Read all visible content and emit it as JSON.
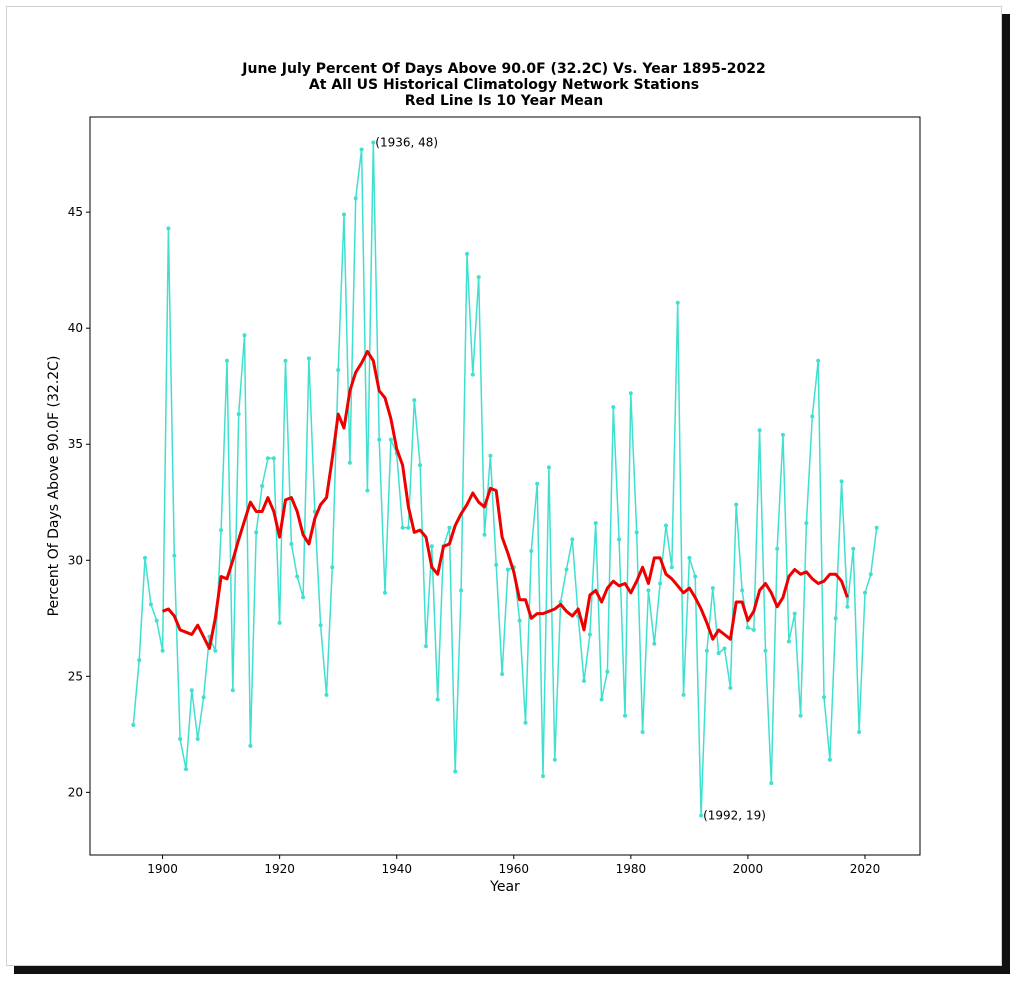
{
  "chart_data": {
    "type": "line",
    "title_lines": [
      "June July Percent Of Days Above 90.0F (32.2C) Vs. Year 1895-2022",
      "At All US Historical Climatology Network Stations",
      "Red Line Is 10 Year Mean"
    ],
    "xlabel": "Year",
    "ylabel": "Percent Of Days Above 90.0F (32.2C)",
    "xlim": [
      1887.6,
      2029.4
    ],
    "ylim": [
      17.3,
      49.1
    ],
    "xticks": [
      1900,
      1920,
      1940,
      1960,
      1980,
      2000,
      2020
    ],
    "yticks": [
      20,
      25,
      30,
      35,
      40,
      45
    ],
    "grid": false,
    "series": [
      {
        "color": "#40e0d0",
        "x": [
          1895,
          1896,
          1897,
          1898,
          1899,
          1900,
          1901,
          1902,
          1903,
          1904,
          1905,
          1906,
          1907,
          1908,
          1909,
          1910,
          1911,
          1912,
          1913,
          1914,
          1915,
          1916,
          1917,
          1918,
          1919,
          1920,
          1921,
          1922,
          1923,
          1924,
          1925,
          1926,
          1927,
          1928,
          1929,
          1930,
          1931,
          1932,
          1933,
          1934,
          1935,
          1936,
          1937,
          1938,
          1939,
          1940,
          1941,
          1942,
          1943,
          1944,
          1945,
          1946,
          1947,
          1948,
          1949,
          1950,
          1951,
          1952,
          1953,
          1954,
          1955,
          1956,
          1957,
          1958,
          1959,
          1960,
          1961,
          1962,
          1963,
          1964,
          1965,
          1966,
          1967,
          1968,
          1969,
          1970,
          1971,
          1972,
          1973,
          1974,
          1975,
          1976,
          1977,
          1978,
          1979,
          1980,
          1981,
          1982,
          1983,
          1984,
          1985,
          1986,
          1987,
          1988,
          1989,
          1990,
          1991,
          1992,
          1993,
          1994,
          1995,
          1996,
          1997,
          1998,
          1999,
          2000,
          2001,
          2002,
          2003,
          2004,
          2005,
          2006,
          2007,
          2008,
          2009,
          2010,
          2011,
          2012,
          2013,
          2014,
          2015,
          2016,
          2017,
          2018,
          2019,
          2020,
          2021,
          2022
        ],
        "values": [
          22.9,
          25.7,
          30.1,
          28.1,
          27.4,
          26.1,
          44.3,
          30.2,
          22.3,
          21.0,
          24.4,
          22.3,
          24.1,
          26.7,
          26.1,
          31.3,
          38.6,
          24.4,
          36.3,
          39.7,
          22.0,
          31.2,
          33.2,
          34.4,
          34.4,
          27.3,
          38.6,
          30.7,
          29.3,
          28.4,
          38.7,
          32.1,
          27.2,
          24.2,
          29.7,
          38.2,
          44.9,
          34.2,
          45.6,
          47.7,
          33.0,
          48.0,
          35.2,
          28.6,
          35.2,
          34.6,
          31.4,
          31.4,
          36.9,
          34.1,
          26.3,
          30.6,
          24.0,
          30.6,
          31.4,
          20.9,
          28.7,
          43.2,
          38.0,
          42.2,
          31.1,
          34.5,
          29.8,
          25.1,
          29.6,
          29.7,
          27.4,
          23.0,
          30.4,
          33.3,
          20.7,
          34.0,
          21.4,
          28.2,
          29.6,
          30.9,
          27.6,
          24.8,
          26.8,
          31.6,
          24.0,
          25.2,
          36.6,
          30.9,
          23.3,
          37.2,
          31.2,
          22.6,
          28.7,
          26.4,
          29.0,
          31.5,
          29.7,
          41.1,
          24.2,
          30.1,
          29.3,
          19.0,
          26.1,
          28.8,
          26.0,
          26.2,
          24.5,
          32.4,
          28.7,
          27.1,
          27.0,
          35.6,
          26.1,
          20.4,
          30.5,
          35.4,
          26.5,
          27.7,
          23.3,
          31.6,
          36.2,
          38.6,
          24.1,
          21.4,
          27.5,
          33.4,
          28.0,
          30.5,
          22.6,
          28.6,
          29.4,
          31.4
        ]
      },
      {
        "color": "#ee0000",
        "x": [
          1900,
          1901,
          1902,
          1903,
          1904,
          1905,
          1906,
          1907,
          1908,
          1909,
          1910,
          1911,
          1912,
          1913,
          1914,
          1915,
          1916,
          1917,
          1918,
          1919,
          1920,
          1921,
          1922,
          1923,
          1924,
          1925,
          1926,
          1927,
          1928,
          1929,
          1930,
          1931,
          1932,
          1933,
          1934,
          1935,
          1936,
          1937,
          1938,
          1939,
          1940,
          1941,
          1942,
          1943,
          1944,
          1945,
          1946,
          1947,
          1948,
          1949,
          1950,
          1951,
          1952,
          1953,
          1954,
          1955,
          1956,
          1957,
          1958,
          1959,
          1960,
          1961,
          1962,
          1963,
          1964,
          1965,
          1966,
          1967,
          1968,
          1969,
          1970,
          1971,
          1972,
          1973,
          1974,
          1975,
          1976,
          1977,
          1978,
          1979,
          1980,
          1981,
          1982,
          1983,
          1984,
          1985,
          1986,
          1987,
          1988,
          1989,
          1990,
          1991,
          1992,
          1993,
          1994,
          1995,
          1996,
          1997,
          1998,
          1999,
          2000,
          2001,
          2002,
          2003,
          2004,
          2005,
          2006,
          2007,
          2008,
          2009,
          2010,
          2011,
          2012,
          2013,
          2014,
          2015,
          2016,
          2017
        ],
        "values": [
          27.8,
          27.9,
          27.6,
          27.0,
          26.9,
          26.8,
          27.2,
          26.7,
          26.2,
          27.5,
          29.3,
          29.2,
          30.0,
          30.9,
          31.7,
          32.5,
          32.1,
          32.1,
          32.7,
          32.1,
          31.0,
          32.6,
          32.7,
          32.1,
          31.1,
          30.7,
          31.8,
          32.4,
          32.7,
          34.4,
          36.3,
          35.7,
          37.3,
          38.1,
          38.5,
          39.0,
          38.6,
          37.3,
          37.0,
          36.1,
          34.8,
          34.1,
          32.3,
          31.2,
          31.3,
          31.0,
          29.7,
          29.4,
          30.6,
          30.7,
          31.5,
          32.0,
          32.4,
          32.9,
          32.5,
          32.3,
          33.1,
          33.0,
          31.0,
          30.3,
          29.5,
          28.3,
          28.3,
          27.5,
          27.7,
          27.7,
          27.8,
          27.9,
          28.1,
          27.8,
          27.6,
          27.9,
          27.0,
          28.5,
          28.7,
          28.2,
          28.8,
          29.1,
          28.9,
          29.0,
          28.6,
          29.1,
          29.7,
          29.0,
          30.1,
          30.1,
          29.4,
          29.2,
          28.9,
          28.6,
          28.8,
          28.4,
          27.9,
          27.3,
          26.6,
          27.0,
          26.8,
          26.6,
          28.2,
          28.2,
          27.4,
          27.8,
          28.7,
          29.0,
          28.6,
          28.0,
          28.4,
          29.3,
          29.6,
          29.4,
          29.5,
          29.2,
          29.0,
          29.1,
          29.4,
          29.4,
          29.1,
          28.4
        ]
      }
    ],
    "annotations": [
      {
        "text": "(1936, 48)",
        "x": 1936,
        "y": 48
      },
      {
        "text": "(1992, 19)",
        "x": 1992,
        "y": 19
      }
    ]
  }
}
